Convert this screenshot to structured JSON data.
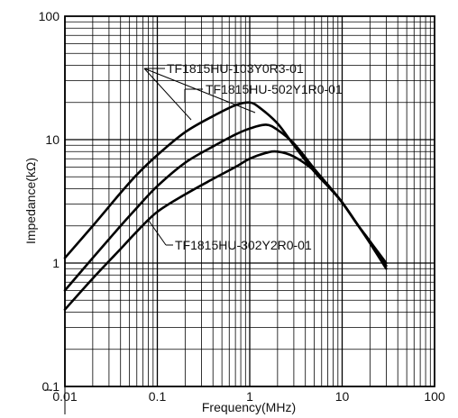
{
  "chart_data": {
    "type": "line",
    "title": "",
    "xlabel": "Frequency(MHz)",
    "ylabel": "Impedance(kΩ)",
    "x_scale": "log",
    "y_scale": "log",
    "xlim": [
      0.01,
      100
    ],
    "ylim": [
      0.1,
      100
    ],
    "grid": true,
    "x_tick_labels": [
      "0.01",
      "0.1",
      "1",
      "10",
      "100"
    ],
    "y_tick_labels": [
      "0.1",
      "1",
      "10",
      "100"
    ],
    "series": [
      {
        "name": "TF1815HU-103Y0R3-01",
        "x": [
          0.01,
          0.02,
          0.04,
          0.06,
          0.1,
          0.2,
          0.4,
          0.7,
          1.0,
          1.3,
          2,
          3,
          5,
          7,
          10,
          15,
          20,
          30
        ],
        "y": [
          1.1,
          2.0,
          3.7,
          5.2,
          7.5,
          11.5,
          15.5,
          19.0,
          20.0,
          18.0,
          13.5,
          9.0,
          5.5,
          4.2,
          3.1,
          2.0,
          1.5,
          1.0
        ]
      },
      {
        "name": "TF1815HU-502Y1R0-01",
        "x": [
          0.01,
          0.02,
          0.04,
          0.06,
          0.1,
          0.2,
          0.4,
          0.7,
          1.0,
          1.5,
          2,
          3,
          5,
          7,
          10,
          15,
          20,
          30
        ],
        "y": [
          0.6,
          1.1,
          2.0,
          2.8,
          4.2,
          6.5,
          8.8,
          11.0,
          12.3,
          13.2,
          12.0,
          9.3,
          5.8,
          4.3,
          3.1,
          2.0,
          1.5,
          0.95
        ]
      },
      {
        "name": "TF1815HU-302Y2R0-01",
        "x": [
          0.01,
          0.02,
          0.04,
          0.06,
          0.1,
          0.2,
          0.4,
          0.7,
          1.0,
          1.5,
          2,
          3,
          5,
          7,
          10,
          15,
          20,
          30
        ],
        "y": [
          0.42,
          0.75,
          1.3,
          1.8,
          2.6,
          3.6,
          4.8,
          6.0,
          7.0,
          7.8,
          8.0,
          7.3,
          5.6,
          4.3,
          3.1,
          2.0,
          1.45,
          0.9
        ]
      }
    ],
    "annotations": [
      {
        "text": "TF1815HU-103Y0R3-01",
        "series": 0
      },
      {
        "text": "TF1815HU-502Y1R0-01",
        "series": 1
      },
      {
        "text": "TF1815HU-302Y2R0-01",
        "series": 2
      }
    ]
  }
}
